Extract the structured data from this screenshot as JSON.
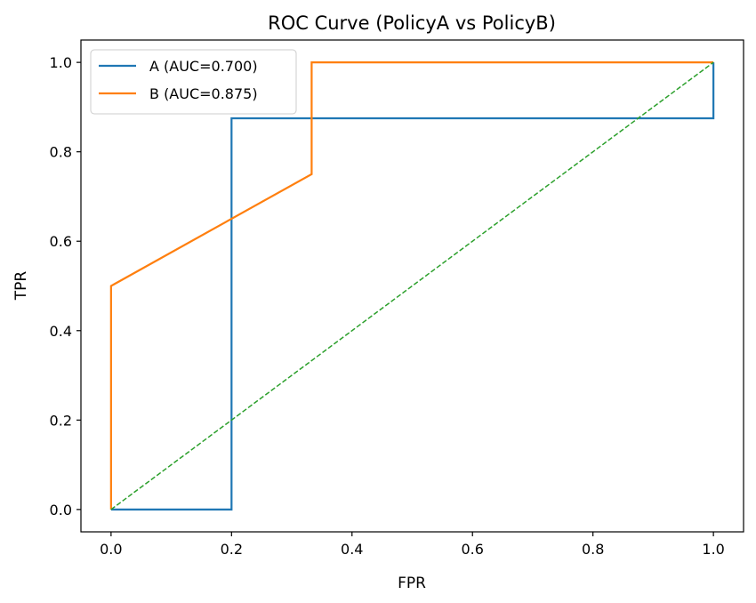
{
  "chart_data": {
    "type": "line",
    "title": "ROC Curve (PolicyA vs PolicyB)",
    "xlabel": "FPR",
    "ylabel": "TPR",
    "xlim": [
      -0.05,
      1.05
    ],
    "ylim": [
      -0.05,
      1.05
    ],
    "xticks": [
      0.0,
      0.2,
      0.4,
      0.6,
      0.8,
      1.0
    ],
    "yticks": [
      0.0,
      0.2,
      0.4,
      0.6,
      0.8,
      1.0
    ],
    "xtick_labels": [
      "0.0",
      "0.2",
      "0.4",
      "0.6",
      "0.8",
      "1.0"
    ],
    "ytick_labels": [
      "0.0",
      "0.2",
      "0.4",
      "0.6",
      "0.8",
      "1.0"
    ],
    "grid": false,
    "legend_position": "top-left",
    "series": [
      {
        "name": "A (AUC=0.700)",
        "color": "#1f77b4",
        "style": "solid",
        "x": [
          0.0,
          0.2,
          0.2,
          1.0,
          1.0
        ],
        "y": [
          0.0,
          0.0,
          0.875,
          0.875,
          1.0
        ]
      },
      {
        "name": "B (AUC=0.875)",
        "color": "#ff7f0e",
        "style": "solid",
        "x": [
          0.0,
          0.0,
          0.333,
          0.333,
          1.0
        ],
        "y": [
          0.0,
          0.5,
          0.75,
          1.0,
          1.0
        ]
      },
      {
        "color": "#2ca02c",
        "style": "dashed",
        "x": [
          0.0,
          1.0
        ],
        "y": [
          0.0,
          1.0
        ]
      }
    ]
  }
}
